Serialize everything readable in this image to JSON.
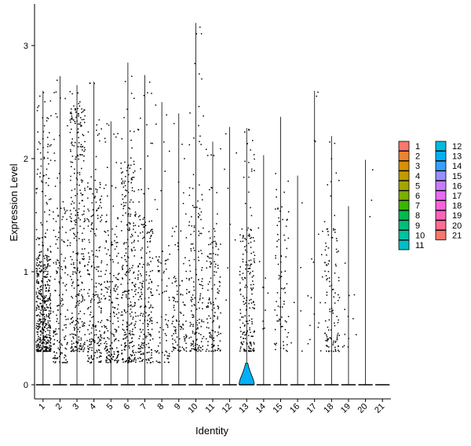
{
  "chart_data": {
    "type": "violin",
    "xlabel": "Identity",
    "ylabel": "Expression Level",
    "yticks": [
      0,
      1,
      2,
      3
    ],
    "ylim": [
      -0.1,
      3.38
    ],
    "grid": false,
    "legend_position": "right",
    "legend_columns": [
      [
        "1",
        "2",
        "3",
        "4",
        "5",
        "6",
        "7",
        "8",
        "9",
        "10",
        "11"
      ],
      [
        "12",
        "13",
        "14",
        "15",
        "16",
        "17",
        "18",
        "19",
        "20",
        "21"
      ]
    ],
    "categories": [
      "1",
      "2",
      "3",
      "4",
      "5",
      "6",
      "7",
      "8",
      "9",
      "10",
      "11",
      "12",
      "13",
      "14",
      "15",
      "16",
      "17",
      "18",
      "19",
      "20",
      "21"
    ],
    "colors": [
      "#F8766D",
      "#EA8331",
      "#D89000",
      "#C09B00",
      "#A3A500",
      "#7CAE00",
      "#39B600",
      "#00BB4E",
      "#00BF7D",
      "#00C1A3",
      "#00BFC4",
      "#00BAE0",
      "#00B0F6",
      "#35A2FF",
      "#9590FF",
      "#C77CFF",
      "#E76BF3",
      "#FA62DB",
      "#FF62BC",
      "#FF6C91",
      "#F8766D"
    ],
    "violins": [
      {
        "name": "1",
        "max": 2.6,
        "body_height": 0,
        "n_points": 500,
        "dense_low": 0.3,
        "dense_high": 1.2,
        "spread": 0.19
      },
      {
        "name": "2",
        "max": 2.73,
        "body_height": 0,
        "n_points": 170,
        "dense_low": 0.2,
        "dense_high": 1.6,
        "spread": 0.16
      },
      {
        "name": "3",
        "max": 2.65,
        "body_height": 0,
        "n_points": 320,
        "dense_low": 0.3,
        "dense_high": 2.5,
        "spread": 0.17
      },
      {
        "name": "4",
        "max": 2.68,
        "body_height": 0,
        "n_points": 230,
        "dense_low": 0.2,
        "dense_high": 1.8,
        "spread": 0.16
      },
      {
        "name": "5",
        "max": 2.33,
        "body_height": 0,
        "n_points": 200,
        "dense_low": 0.2,
        "dense_high": 1.5,
        "spread": 0.16
      },
      {
        "name": "6",
        "max": 2.85,
        "body_height": 0,
        "n_points": 290,
        "dense_low": 0.2,
        "dense_high": 2.0,
        "spread": 0.17
      },
      {
        "name": "7",
        "max": 2.74,
        "body_height": 0,
        "n_points": 220,
        "dense_low": 0.2,
        "dense_high": 1.5,
        "spread": 0.16
      },
      {
        "name": "8",
        "max": 2.5,
        "body_height": 0,
        "n_points": 80,
        "dense_low": 0.2,
        "dense_high": 1.2,
        "spread": 0.12
      },
      {
        "name": "9",
        "max": 2.4,
        "body_height": 0,
        "n_points": 110,
        "dense_low": 0.3,
        "dense_high": 1.0,
        "spread": 0.14
      },
      {
        "name": "10",
        "max": 3.2,
        "body_height": 0,
        "n_points": 170,
        "dense_low": 0.3,
        "dense_high": 1.8,
        "spread": 0.16
      },
      {
        "name": "11",
        "max": 2.15,
        "body_height": 0,
        "n_points": 140,
        "dense_low": 0.3,
        "dense_high": 1.4,
        "spread": 0.15
      },
      {
        "name": "12",
        "max": 2.28,
        "body_height": 0,
        "n_points": 8,
        "dense_low": 0.6,
        "dense_high": 2.3,
        "spread": 0.1
      },
      {
        "name": "13",
        "max": 2.27,
        "body_height": 0.19,
        "n_points": 200,
        "dense_low": 0.3,
        "dense_high": 1.4,
        "spread": 0.13
      },
      {
        "name": "14",
        "max": 2.03,
        "body_height": 0,
        "n_points": 10,
        "dense_low": 0.5,
        "dense_high": 1.0,
        "spread": 0.1
      },
      {
        "name": "15",
        "max": 2.37,
        "body_height": 0,
        "n_points": 80,
        "dense_low": 0.3,
        "dense_high": 1.6,
        "spread": 0.12
      },
      {
        "name": "16",
        "max": 1.85,
        "body_height": 0,
        "n_points": 6,
        "dense_low": 0.3,
        "dense_high": 1.9,
        "spread": 0.08
      },
      {
        "name": "17",
        "max": 2.6,
        "body_height": 0,
        "n_points": 20,
        "dense_low": 0.3,
        "dense_high": 1.4,
        "spread": 0.1
      },
      {
        "name": "18",
        "max": 2.2,
        "body_height": 0,
        "n_points": 120,
        "dense_low": 0.3,
        "dense_high": 1.4,
        "spread": 0.13
      },
      {
        "name": "19",
        "max": 1.58,
        "body_height": 0,
        "n_points": 12,
        "dense_low": 0.3,
        "dense_high": 0.9,
        "spread": 0.08
      },
      {
        "name": "20",
        "max": 1.99,
        "body_height": 0,
        "n_points": 3,
        "dense_low": 1.3,
        "dense_high": 1.99,
        "spread": 0.05
      },
      {
        "name": "21",
        "max": 0,
        "body_height": 0,
        "n_points": 0,
        "dense_low": 0,
        "dense_high": 0,
        "spread": 0.05
      }
    ]
  }
}
